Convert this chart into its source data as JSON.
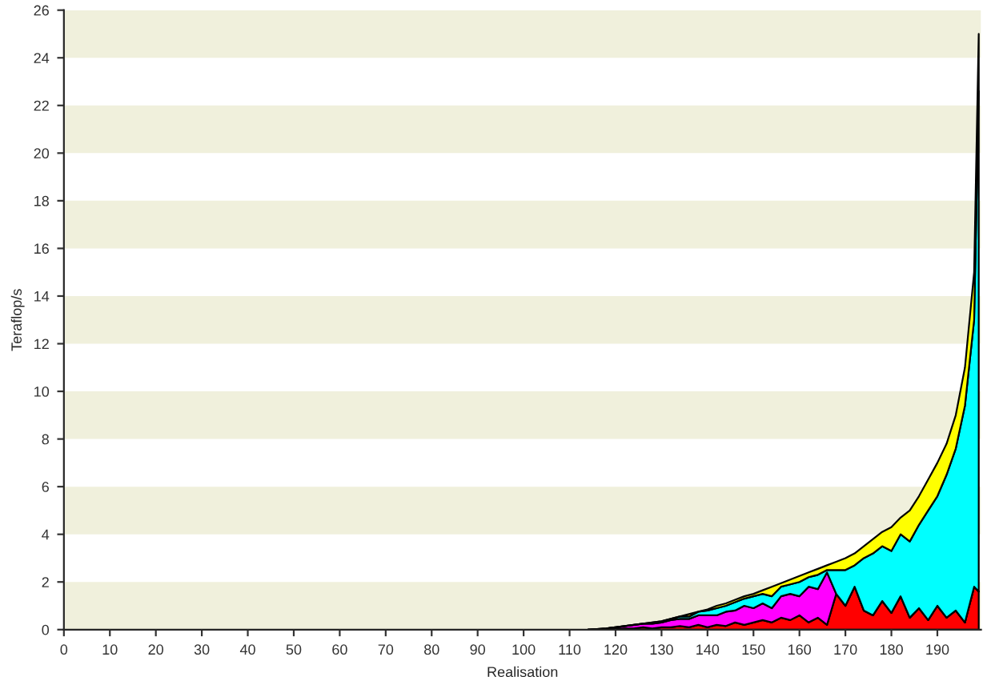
{
  "chart_data": {
    "type": "area",
    "stacked": true,
    "xlabel": "Realisation",
    "ylabel": "Teraflop/s",
    "x": [
      114,
      116,
      118,
      120,
      122,
      124,
      126,
      128,
      130,
      132,
      134,
      136,
      138,
      140,
      142,
      144,
      146,
      148,
      150,
      152,
      154,
      156,
      158,
      160,
      162,
      164,
      166,
      168,
      170,
      172,
      174,
      176,
      178,
      180,
      182,
      184,
      186,
      188,
      190,
      192,
      194,
      196,
      198,
      199
    ],
    "series": [
      {
        "color": "#ff0000",
        "values": [
          0,
          0.01,
          0.02,
          0.03,
          0.05,
          0.05,
          0.1,
          0.05,
          0.1,
          0.1,
          0.15,
          0.1,
          0.2,
          0.1,
          0.2,
          0.15,
          0.3,
          0.2,
          0.3,
          0.4,
          0.3,
          0.5,
          0.4,
          0.6,
          0.3,
          0.5,
          0.2,
          1.5,
          1.0,
          1.8,
          0.8,
          0.6,
          1.2,
          0.7,
          1.4,
          0.5,
          0.9,
          0.4,
          1.0,
          0.5,
          0.8,
          0.3,
          1.8,
          1.6
        ]
      },
      {
        "color": "#ff00ff",
        "values": [
          0,
          0.01,
          0.03,
          0.07,
          0.1,
          0.15,
          0.15,
          0.2,
          0.2,
          0.3,
          0.3,
          0.35,
          0.4,
          0.5,
          0.4,
          0.6,
          0.5,
          0.8,
          0.6,
          0.7,
          0.6,
          0.9,
          1.1,
          0.8,
          1.5,
          1.2,
          2.2,
          0,
          0,
          0,
          0,
          0,
          0,
          0,
          0,
          0,
          0,
          0,
          0,
          0,
          0,
          0,
          0,
          0
        ]
      },
      {
        "color": "#00ffff",
        "values": [
          0,
          0,
          0,
          0,
          0,
          0,
          0,
          0.05,
          0.05,
          0.05,
          0.1,
          0.1,
          0.15,
          0.2,
          0.3,
          0.25,
          0.35,
          0.3,
          0.5,
          0.4,
          0.5,
          0.4,
          0.4,
          0.6,
          0.4,
          0.6,
          0.1,
          1.0,
          1.5,
          0.9,
          2.2,
          2.6,
          2.3,
          2.6,
          2.6,
          3.2,
          3.5,
          4.6,
          4.6,
          6.0,
          6.8,
          9.1,
          11.2,
          21.0
        ]
      },
      {
        "color": "#ffff00",
        "values": [
          0,
          0,
          0,
          0,
          0,
          0,
          0,
          0,
          0,
          0,
          0,
          0.1,
          0,
          0.05,
          0.1,
          0.1,
          0.1,
          0.1,
          0.1,
          0.15,
          0.4,
          0.15,
          0.2,
          0.25,
          0.2,
          0.25,
          0.2,
          0.35,
          0.5,
          0.5,
          0.5,
          0.6,
          0.6,
          1.0,
          0.7,
          1.3,
          1.2,
          1.3,
          1.4,
          1.3,
          1.4,
          1.6,
          2.0,
          2.4
        ]
      }
    ],
    "xlim": [
      0,
      199.5
    ],
    "ylim": [
      0,
      26
    ],
    "xticks": [
      0,
      10,
      20,
      30,
      40,
      50,
      60,
      70,
      80,
      90,
      100,
      110,
      120,
      130,
      140,
      150,
      160,
      170,
      180,
      190
    ],
    "yticks": [
      0,
      2,
      4,
      6,
      8,
      10,
      12,
      14,
      16,
      18,
      20,
      22,
      24,
      26
    ],
    "bands": [
      {
        "axis": "y",
        "from": 0,
        "to": 2,
        "color": "#f0f0dc"
      },
      {
        "axis": "y",
        "from": 4,
        "to": 6,
        "color": "#f0f0dc"
      },
      {
        "axis": "y",
        "from": 8,
        "to": 10,
        "color": "#f0f0dc"
      },
      {
        "axis": "y",
        "from": 12,
        "to": 14,
        "color": "#f0f0dc"
      },
      {
        "axis": "y",
        "from": 16,
        "to": 18,
        "color": "#f0f0dc"
      },
      {
        "axis": "y",
        "from": 20,
        "to": 22,
        "color": "#f0f0dc"
      },
      {
        "axis": "y",
        "from": 24,
        "to": 26,
        "color": "#f0f0dc"
      }
    ],
    "grid": false,
    "legend": false
  }
}
